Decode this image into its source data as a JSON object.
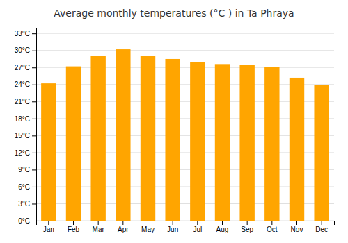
{
  "chart_data": {
    "type": "bar",
    "title": "Average monthly temperatures (°C ) in Ta Phraya",
    "categories": [
      "Jan",
      "Feb",
      "Mar",
      "Apr",
      "May",
      "Jun",
      "Jul",
      "Aug",
      "Sep",
      "Oct",
      "Nov",
      "Dec"
    ],
    "values": [
      24.2,
      27.2,
      29.0,
      30.2,
      29.1,
      28.5,
      28.0,
      27.6,
      27.4,
      27.1,
      25.2,
      23.9
    ],
    "color": "#FFA500",
    "ylim": [
      0,
      34
    ],
    "yticks": [
      {
        "value": 0,
        "label": "0°C"
      },
      {
        "value": 3,
        "label": "3°C"
      },
      {
        "value": 6,
        "label": "6°C"
      },
      {
        "value": 9,
        "label": "9°C"
      },
      {
        "value": 12,
        "label": "12°C"
      },
      {
        "value": 15,
        "label": "15°C"
      },
      {
        "value": 18,
        "label": "18°C"
      },
      {
        "value": 21,
        "label": "21°C"
      },
      {
        "value": 24,
        "label": "24°C"
      },
      {
        "value": 27,
        "label": "27°C"
      },
      {
        "value": 30,
        "label": "30°C"
      },
      {
        "value": 33,
        "label": "33°C"
      }
    ],
    "grid": true
  }
}
